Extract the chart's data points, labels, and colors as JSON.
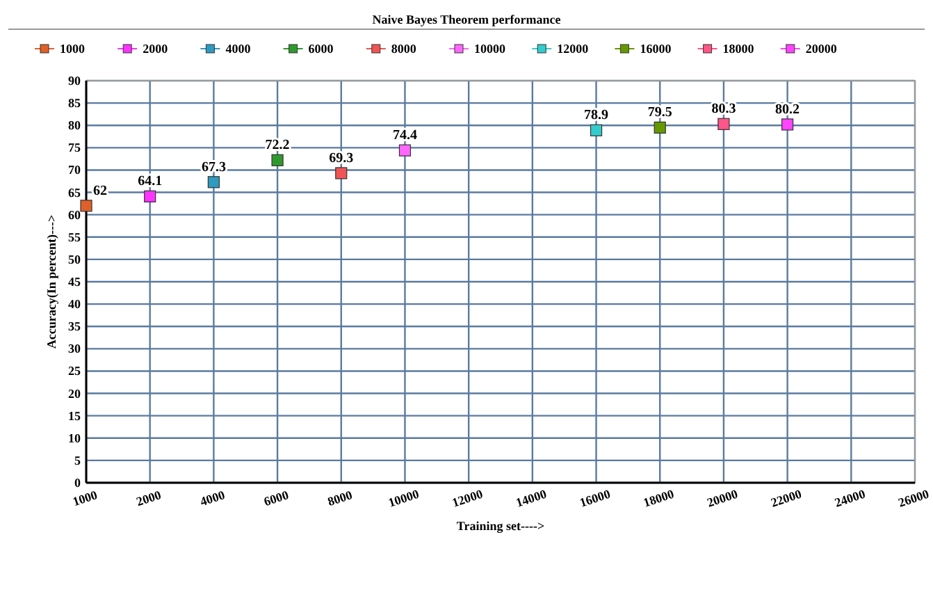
{
  "chart_data": {
    "type": "scatter",
    "title": "Naive Bayes Theorem performance",
    "xlabel": "Training set---->",
    "ylabel": "Accuracy(In percent)--->",
    "categories": [
      "1000",
      "2000",
      "4000",
      "6000",
      "8000",
      "10000",
      "12000",
      "14000",
      "16000",
      "18000",
      "20000",
      "22000",
      "24000",
      "26000"
    ],
    "ylim": [
      0,
      90
    ],
    "yticks": [
      0,
      5,
      10,
      15,
      20,
      25,
      30,
      35,
      40,
      45,
      50,
      55,
      60,
      65,
      70,
      75,
      80,
      85,
      90
    ],
    "grid": true,
    "legend": "top",
    "marker": "square",
    "data_labels": true,
    "series": [
      {
        "name": "1000",
        "color": "#e0602a",
        "values": [
          62,
          null,
          null,
          null,
          null,
          null,
          null,
          null,
          null,
          null,
          null,
          null,
          null,
          null
        ]
      },
      {
        "name": "2000",
        "color": "#ff33ff",
        "values": [
          null,
          64.1,
          null,
          null,
          null,
          null,
          null,
          null,
          null,
          null,
          null,
          null,
          null,
          null
        ]
      },
      {
        "name": "4000",
        "color": "#2e9ac0",
        "values": [
          null,
          null,
          67.3,
          null,
          null,
          null,
          null,
          null,
          null,
          null,
          null,
          null,
          null,
          null
        ]
      },
      {
        "name": "6000",
        "color": "#2e9a2e",
        "values": [
          null,
          null,
          null,
          72.2,
          null,
          null,
          null,
          null,
          null,
          null,
          null,
          null,
          null,
          null
        ]
      },
      {
        "name": "8000",
        "color": "#f05555",
        "values": [
          null,
          null,
          null,
          null,
          69.3,
          null,
          null,
          null,
          null,
          null,
          null,
          null,
          null,
          null
        ]
      },
      {
        "name": "10000",
        "color": "#ff66ff",
        "values": [
          null,
          null,
          null,
          null,
          null,
          74.4,
          null,
          null,
          null,
          null,
          null,
          null,
          null,
          null
        ]
      },
      {
        "name": "12000",
        "color": "#33cccc",
        "values": [
          null,
          null,
          null,
          null,
          null,
          null,
          null,
          null,
          78.9,
          null,
          null,
          null,
          null,
          null
        ]
      },
      {
        "name": "16000",
        "color": "#669900",
        "values": [
          null,
          null,
          null,
          null,
          null,
          null,
          null,
          null,
          null,
          79.5,
          null,
          null,
          null,
          null
        ]
      },
      {
        "name": "18000",
        "color": "#ff5588",
        "values": [
          null,
          null,
          null,
          null,
          null,
          null,
          null,
          null,
          null,
          null,
          80.3,
          null,
          null,
          null
        ]
      },
      {
        "name": "20000",
        "color": "#ff44ff",
        "values": [
          null,
          null,
          null,
          null,
          null,
          null,
          null,
          null,
          null,
          null,
          null,
          80.2,
          null,
          null
        ]
      }
    ]
  }
}
